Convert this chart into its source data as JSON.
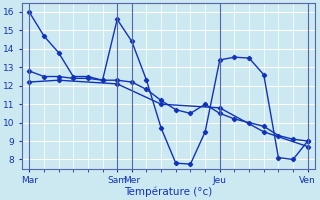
{
  "xlabel": "Température (°c)",
  "background_color": "#cce8f0",
  "grid_color": "#ffffff",
  "line_color": "#1133bb",
  "ylim": [
    7.5,
    16.5
  ],
  "yticks": [
    8,
    9,
    10,
    11,
    12,
    13,
    14,
    15,
    16
  ],
  "day_labels": [
    "Mar",
    "",
    "",
    "",
    "",
    "",
    "Sam",
    "Mer",
    "",
    "",
    "",
    "",
    "",
    "Jeu",
    "",
    "",
    "",
    "",
    "",
    "Ven"
  ],
  "day_tick_positions": [
    0,
    6,
    7,
    13,
    19
  ],
  "day_label_names": [
    "Mar",
    "Sam",
    "Mer",
    "Jeu",
    "Ven"
  ],
  "xlim": [
    -0.5,
    19.5
  ],
  "line1_x": [
    0,
    1,
    2,
    3,
    4,
    5,
    6,
    7,
    8,
    9,
    10,
    11,
    12,
    13,
    14,
    15,
    16,
    17,
    18,
    19
  ],
  "line1_y": [
    16.0,
    14.7,
    13.8,
    12.5,
    12.5,
    12.3,
    15.6,
    14.4,
    12.3,
    9.7,
    7.8,
    7.75,
    9.5,
    13.4,
    13.55,
    13.5,
    12.6,
    8.1,
    8.0,
    9.0
  ],
  "line2_x": [
    0,
    1,
    2,
    3,
    4,
    5,
    6,
    7,
    8,
    9,
    10,
    11,
    12,
    13,
    14,
    15,
    16,
    17,
    18,
    19
  ],
  "line2_y": [
    12.8,
    12.5,
    12.5,
    12.4,
    12.4,
    12.3,
    12.3,
    12.2,
    11.8,
    11.2,
    10.7,
    10.5,
    11.0,
    10.5,
    10.2,
    10.0,
    9.8,
    9.3,
    9.1,
    9.0
  ],
  "line3_x": [
    0,
    2,
    6,
    9,
    13,
    16,
    19
  ],
  "line3_y": [
    12.2,
    12.3,
    12.1,
    11.0,
    10.8,
    9.5,
    8.7
  ],
  "vlines": [
    0,
    6,
    7,
    13,
    19
  ]
}
